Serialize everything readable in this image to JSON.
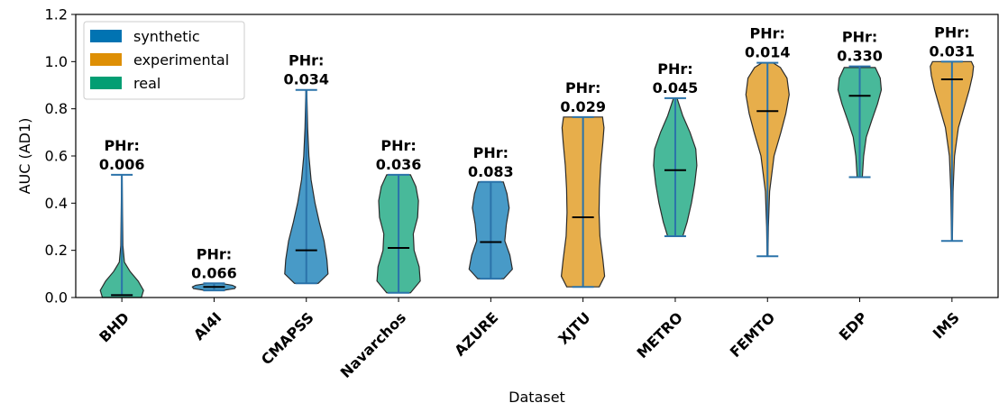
{
  "chart_data": {
    "type": "violin",
    "xlabel": "Dataset",
    "ylabel": "AUC (AD1)",
    "ylim": [
      0,
      1.2
    ],
    "yticks": [
      "0.0",
      "0.2",
      "0.4",
      "0.6",
      "0.8",
      "1.0",
      "1.2"
    ],
    "annotation_prefix": "PHr:",
    "legend": {
      "placement": "top-left",
      "items": [
        {
          "label": "synthetic",
          "color": "#0173b2"
        },
        {
          "label": "experimental",
          "color": "#de8f05"
        },
        {
          "label": "real",
          "color": "#029e73"
        }
      ]
    },
    "series": [
      {
        "category": "BHD",
        "group": "real",
        "min": 0.01,
        "max": 0.52,
        "median": 0.01,
        "phr": "0.006",
        "profile": [
          [
            0.0,
            0.9
          ],
          [
            0.03,
            1.0
          ],
          [
            0.07,
            0.75
          ],
          [
            0.11,
            0.38
          ],
          [
            0.15,
            0.12
          ],
          [
            0.22,
            0.05
          ],
          [
            0.35,
            0.03
          ],
          [
            0.52,
            0.01
          ]
        ]
      },
      {
        "category": "AI4I",
        "group": "synthetic",
        "min": 0.03,
        "max": 0.06,
        "median": 0.045,
        "phr": "0.066",
        "profile": [
          [
            0.03,
            0.4
          ],
          [
            0.038,
            0.95
          ],
          [
            0.045,
            1.0
          ],
          [
            0.052,
            0.85
          ],
          [
            0.06,
            0.3
          ]
        ]
      },
      {
        "category": "CMAPSS",
        "group": "synthetic",
        "min": 0.06,
        "max": 0.88,
        "median": 0.2,
        "phr": "0.034",
        "profile": [
          [
            0.06,
            0.55
          ],
          [
            0.1,
            1.0
          ],
          [
            0.16,
            0.95
          ],
          [
            0.24,
            0.82
          ],
          [
            0.32,
            0.6
          ],
          [
            0.4,
            0.4
          ],
          [
            0.5,
            0.22
          ],
          [
            0.6,
            0.12
          ],
          [
            0.72,
            0.06
          ],
          [
            0.88,
            0.02
          ]
        ]
      },
      {
        "category": "Navarchos",
        "group": "real",
        "min": 0.02,
        "max": 0.52,
        "median": 0.21,
        "phr": "0.036",
        "profile": [
          [
            0.02,
            0.55
          ],
          [
            0.07,
            1.0
          ],
          [
            0.13,
            0.95
          ],
          [
            0.2,
            0.72
          ],
          [
            0.27,
            0.68
          ],
          [
            0.34,
            0.88
          ],
          [
            0.41,
            0.92
          ],
          [
            0.47,
            0.8
          ],
          [
            0.52,
            0.55
          ]
        ]
      },
      {
        "category": "AZURE",
        "group": "synthetic",
        "min": 0.08,
        "max": 0.49,
        "median": 0.235,
        "phr": "0.083",
        "profile": [
          [
            0.08,
            0.6
          ],
          [
            0.12,
            1.0
          ],
          [
            0.18,
            0.88
          ],
          [
            0.24,
            0.65
          ],
          [
            0.31,
            0.72
          ],
          [
            0.38,
            0.85
          ],
          [
            0.44,
            0.75
          ],
          [
            0.49,
            0.58
          ]
        ]
      },
      {
        "category": "XJTU",
        "group": "experimental",
        "min": 0.045,
        "max": 0.765,
        "median": 0.34,
        "phr": "0.029",
        "profile": [
          [
            0.045,
            0.75
          ],
          [
            0.09,
            1.0
          ],
          [
            0.16,
            0.92
          ],
          [
            0.26,
            0.78
          ],
          [
            0.36,
            0.74
          ],
          [
            0.46,
            0.76
          ],
          [
            0.56,
            0.82
          ],
          [
            0.66,
            0.92
          ],
          [
            0.72,
            0.97
          ],
          [
            0.765,
            0.9
          ]
        ]
      },
      {
        "category": "METRO",
        "group": "real",
        "min": 0.26,
        "max": 0.845,
        "median": 0.54,
        "phr": "0.045",
        "profile": [
          [
            0.26,
            0.35
          ],
          [
            0.32,
            0.55
          ],
          [
            0.4,
            0.75
          ],
          [
            0.48,
            0.9
          ],
          [
            0.56,
            1.0
          ],
          [
            0.63,
            0.95
          ],
          [
            0.7,
            0.68
          ],
          [
            0.77,
            0.35
          ],
          [
            0.845,
            0.08
          ]
        ]
      },
      {
        "category": "FEMTO",
        "group": "experimental",
        "min": 0.175,
        "max": 0.995,
        "median": 0.79,
        "phr": "0.014",
        "profile": [
          [
            0.175,
            0.02
          ],
          [
            0.3,
            0.04
          ],
          [
            0.45,
            0.1
          ],
          [
            0.6,
            0.3
          ],
          [
            0.7,
            0.62
          ],
          [
            0.78,
            0.85
          ],
          [
            0.86,
            1.0
          ],
          [
            0.93,
            0.9
          ],
          [
            0.975,
            0.6
          ],
          [
            0.995,
            0.25
          ]
        ]
      },
      {
        "category": "EDP",
        "group": "real",
        "min": 0.51,
        "max": 0.98,
        "median": 0.855,
        "phr": "0.330",
        "profile": [
          [
            0.51,
            0.12
          ],
          [
            0.6,
            0.18
          ],
          [
            0.68,
            0.3
          ],
          [
            0.75,
            0.55
          ],
          [
            0.82,
            0.82
          ],
          [
            0.88,
            1.0
          ],
          [
            0.93,
            0.95
          ],
          [
            0.975,
            0.72
          ]
        ]
      },
      {
        "category": "IMS",
        "group": "experimental",
        "min": 0.24,
        "max": 1.0,
        "median": 0.925,
        "phr": "0.031",
        "profile": [
          [
            0.24,
            0.02
          ],
          [
            0.45,
            0.05
          ],
          [
            0.6,
            0.12
          ],
          [
            0.72,
            0.3
          ],
          [
            0.8,
            0.55
          ],
          [
            0.88,
            0.8
          ],
          [
            0.94,
            0.95
          ],
          [
            0.98,
            1.0
          ],
          [
            1.0,
            0.9
          ]
        ]
      }
    ]
  }
}
